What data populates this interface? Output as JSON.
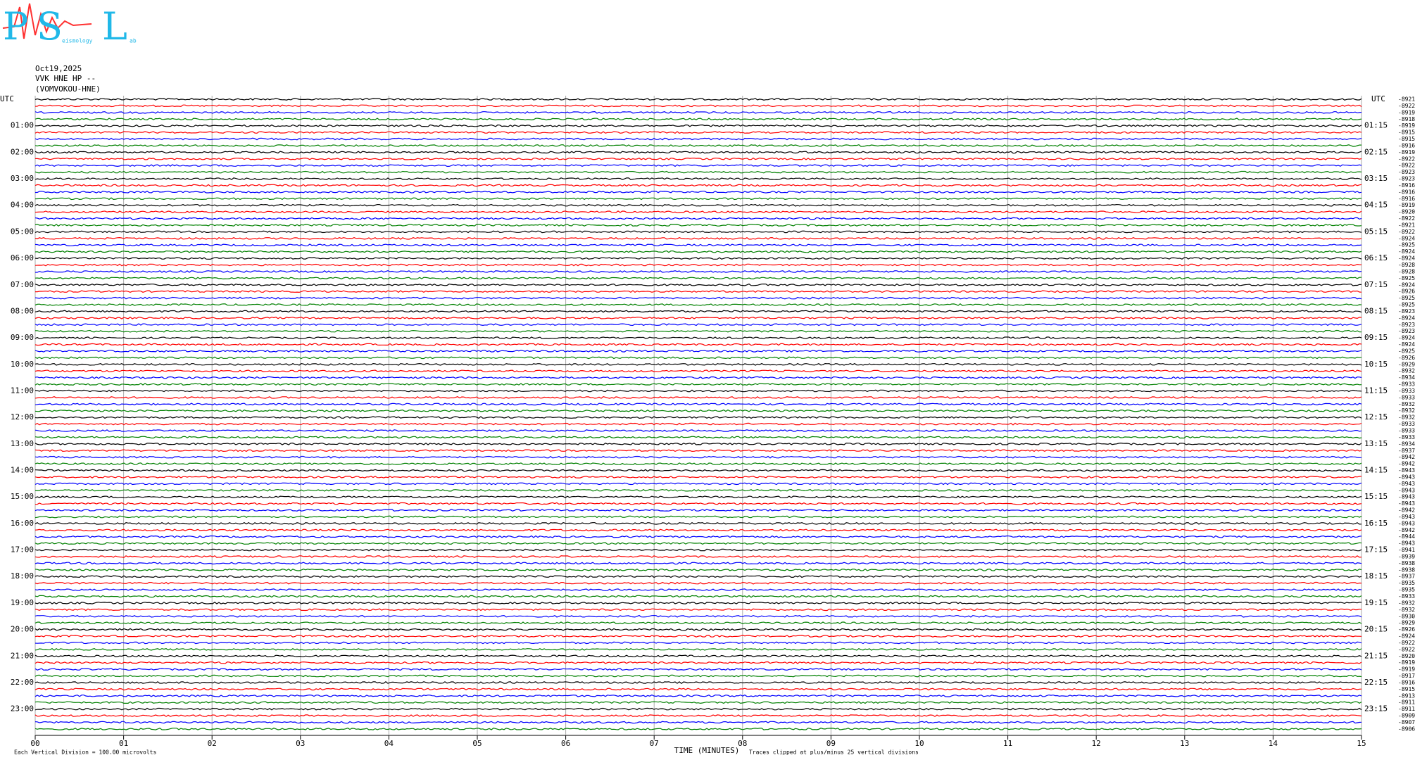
{
  "logo": {
    "letters": [
      "P",
      "S",
      "L"
    ],
    "small": [
      "eismology",
      "ab"
    ]
  },
  "header": {
    "date": "Oct19,2025",
    "station": "VVK HNE HP --",
    "site": "(VOMVOKOU-HNE)"
  },
  "left_axis": {
    "title": "UTC",
    "labels": [
      "01:00",
      "02:00",
      "03:00",
      "04:00",
      "05:00",
      "06:00",
      "07:00",
      "08:00",
      "09:00",
      "10:00",
      "11:00",
      "12:00",
      "13:00",
      "14:00",
      "15:00",
      "16:00",
      "17:00",
      "18:00",
      "19:00",
      "20:00",
      "21:00",
      "22:00",
      "23:00"
    ]
  },
  "right_axis": {
    "title": "UTC",
    "labels": [
      "01:15",
      "02:15",
      "03:15",
      "04:15",
      "05:15",
      "06:15",
      "07:15",
      "08:15",
      "09:15",
      "10:15",
      "11:15",
      "12:15",
      "13:15",
      "14:15",
      "15:15",
      "16:15",
      "17:15",
      "18:15",
      "19:15",
      "20:15",
      "21:15",
      "22:15",
      "23:15"
    ]
  },
  "offsets": [
    "-8921",
    "-8922",
    "-8919",
    "-8918",
    "-8919",
    "-8915",
    "-8915",
    "-8916",
    "-8919",
    "-8922",
    "-8922",
    "-8923",
    "-8923",
    "-8916",
    "-8916",
    "-8916",
    "-8919",
    "-8920",
    "-8922",
    "-8921",
    "-8922",
    "-8924",
    "-8925",
    "-8924",
    "-8924",
    "-8928",
    "-8928",
    "-8925",
    "-8924",
    "-8926",
    "-8925",
    "-8925",
    "-8923",
    "-8924",
    "-8923",
    "-8923",
    "-8924",
    "-8924",
    "-8925",
    "-8926",
    "-8929",
    "-8932",
    "-8934",
    "-8933",
    "-8933",
    "-8933",
    "-8932",
    "-8932",
    "-8932",
    "-8933",
    "-8933",
    "-8933",
    "-8934",
    "-8937",
    "-8942",
    "-8942",
    "-8943",
    "-8943",
    "-8943",
    "-8943",
    "-8943",
    "-8943",
    "-8942",
    "-8943",
    "-8943",
    "-8942",
    "-8944",
    "-8943",
    "-8941",
    "-8939",
    "-8938",
    "-8938",
    "-8937",
    "-8935",
    "-8935",
    "-8933",
    "-8932",
    "-8932",
    "-8930",
    "-8929",
    "-8926",
    "-8924",
    "-8922",
    "-8922",
    "-8920",
    "-8919",
    "-8919",
    "-8917",
    "-8916",
    "-8915",
    "-8913",
    "-8911",
    "-8911",
    "-8909",
    "-8907",
    "-8906"
  ],
  "x_axis": {
    "title": "TIME (MINUTES)",
    "ticks": [
      "00",
      "01",
      "02",
      "03",
      "04",
      "05",
      "06",
      "07",
      "08",
      "09",
      "10",
      "11",
      "12",
      "13",
      "14",
      "15"
    ]
  },
  "footer": {
    "scale": "Each Vertical Division =  100.00 microvolts",
    "clip": "Traces clipped at plus/minus 25 vertical divisions"
  },
  "trace_colors": [
    "#000000",
    "#ff0000",
    "#0000ff",
    "#008000"
  ]
}
